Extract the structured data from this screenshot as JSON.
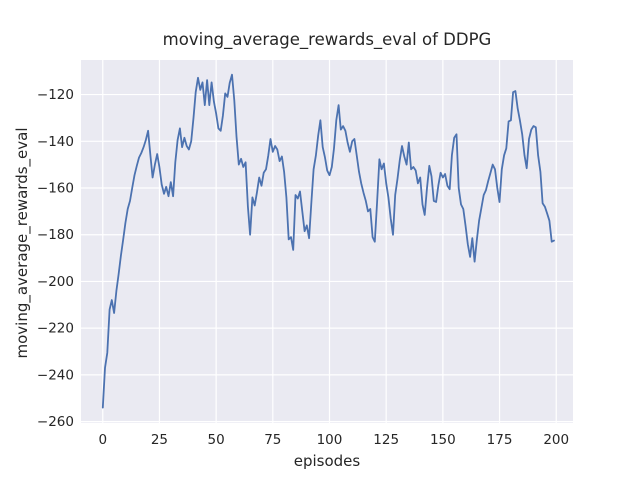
{
  "chart_data": {
    "type": "line",
    "title": "moving_average_rewards_eval of DDPG",
    "xlabel": "episodes",
    "ylabel": "moving_average_rewards_eval",
    "x_ticks": [
      0,
      25,
      50,
      75,
      100,
      125,
      150,
      175,
      200
    ],
    "y_ticks": [
      -120,
      -140,
      -160,
      -180,
      -200,
      -220,
      -240,
      -260
    ],
    "xlim": [
      -9.6,
      207.4
    ],
    "ylim": [
      -260.6,
      -105.2
    ],
    "grid": true,
    "legend": "none",
    "style": {
      "figure_background": "#ffffff",
      "plot_background": "#EAEAF2",
      "grid_color": "#ffffff",
      "line_color": "#4C72B0",
      "text_color": "#262626"
    },
    "series": [
      {
        "name": "DDPG",
        "x_start": 0,
        "x_step": 1,
        "values": [
          -254,
          -237,
          -230.5,
          -212,
          -208,
          -213.5,
          -204,
          -197,
          -189,
          -182,
          -175,
          -169,
          -165.5,
          -160,
          -154.5,
          -150.5,
          -147,
          -145,
          -142.5,
          -139.5,
          -135.5,
          -146,
          -155.5,
          -150,
          -145.5,
          -151,
          -158.5,
          -162.5,
          -159.5,
          -163.5,
          -157.5,
          -163.5,
          -149,
          -139.5,
          -134.5,
          -142.5,
          -138.5,
          -142,
          -143.5,
          -140,
          -130,
          -119,
          -112.8,
          -118,
          -114.8,
          -124.5,
          -113.8,
          -124.5,
          -114.8,
          -123,
          -128,
          -134.5,
          -135.5,
          -129,
          -119.5,
          -121,
          -115,
          -111.5,
          -122.5,
          -138,
          -150,
          -147.5,
          -151,
          -149,
          -168,
          -180,
          -164,
          -167.5,
          -162,
          -155.5,
          -159,
          -153.5,
          -152,
          -146,
          -139,
          -144.5,
          -142,
          -143.5,
          -148.5,
          -146.5,
          -153,
          -164,
          -182,
          -181,
          -186.5,
          -163,
          -164.5,
          -161.5,
          -170,
          -178.5,
          -176,
          -181.5,
          -166,
          -152,
          -146,
          -137.5,
          -131,
          -142.5,
          -147,
          -152.5,
          -154.5,
          -151,
          -143,
          -131,
          -124.5,
          -135,
          -133.5,
          -135.5,
          -140.5,
          -144.5,
          -140,
          -139,
          -146,
          -153,
          -158,
          -162,
          -165.5,
          -170,
          -169,
          -181,
          -183,
          -166,
          -147.7,
          -152,
          -149.5,
          -158,
          -164,
          -173,
          -180,
          -163,
          -156,
          -148,
          -142,
          -146.5,
          -150,
          -140.5,
          -152,
          -151,
          -152.5,
          -158,
          -155.5,
          -167,
          -171.5,
          -160,
          -150.5,
          -155,
          -165.5,
          -166,
          -159,
          -153.5,
          -155.5,
          -154,
          -159,
          -160.5,
          -146,
          -138.5,
          -137,
          -160,
          -167,
          -169,
          -176,
          -184,
          -189.5,
          -181.5,
          -191.5,
          -182,
          -174,
          -168.5,
          -163,
          -161,
          -157,
          -153.5,
          -150,
          -152,
          -160,
          -166,
          -152,
          -146,
          -143,
          -131.5,
          -131,
          -119,
          -118.5,
          -126,
          -131,
          -137,
          -146,
          -151.5,
          -139,
          -135,
          -133.5,
          -134,
          -146,
          -153,
          -166.5,
          -168,
          -171,
          -174,
          -183,
          -182.5
        ]
      }
    ]
  }
}
